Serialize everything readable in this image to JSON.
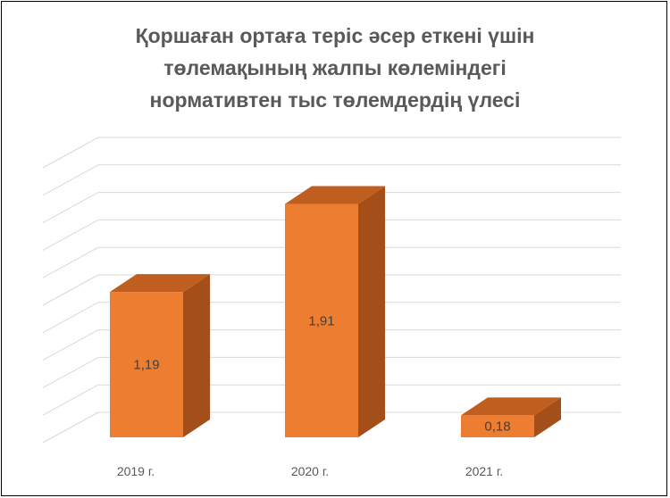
{
  "chart_data": {
    "type": "bar",
    "title_lines": [
      "Қоршаған ортаға теріс әсер еткені үшін",
      "төлемақының жалпы көлеміндегі",
      "нормативтен тыс төлемдердің үлесі"
    ],
    "categories": [
      "2019 г.",
      "2020 г.",
      "2021 г."
    ],
    "series": [
      {
        "values": [
          1.19,
          1.91,
          0.18
        ],
        "data_labels": [
          "1,19",
          "1,91",
          "0,18"
        ]
      }
    ],
    "ylim": [
      0,
      2.25
    ],
    "grid_lines": 10,
    "grid": true,
    "legend": "none",
    "three_d": true,
    "colors": {
      "front": "#ED7D31",
      "side": "#A44F1A",
      "top": "#BF5E1F",
      "grid": "#D9D9D9",
      "text": "#404040"
    }
  }
}
